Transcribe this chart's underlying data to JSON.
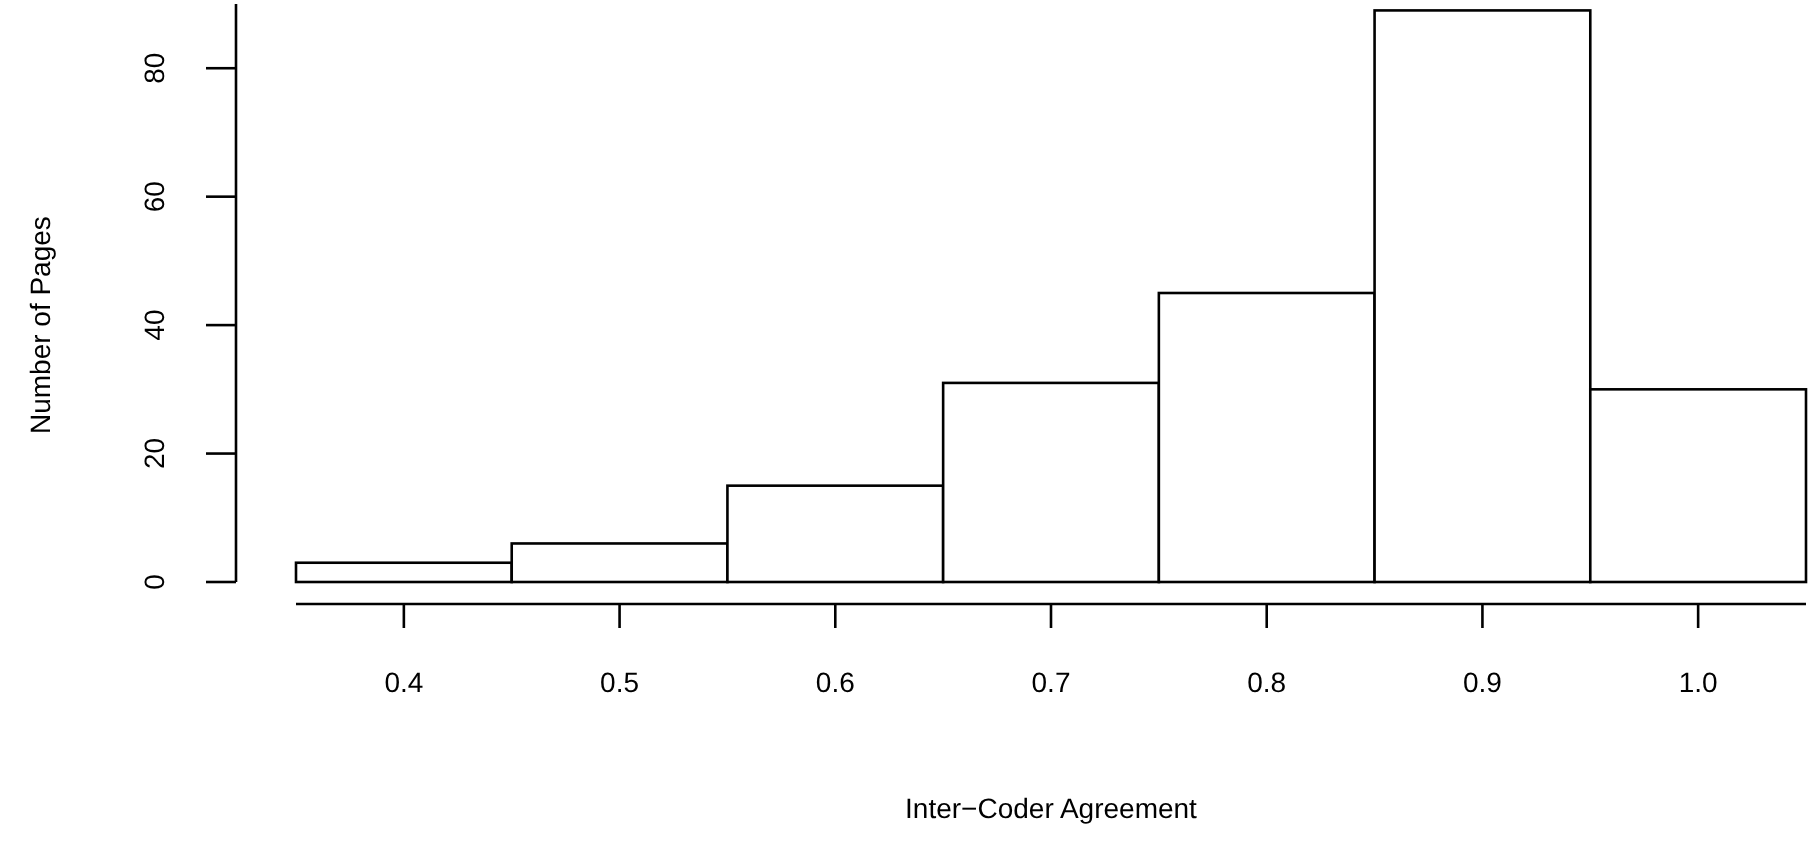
{
  "chart_data": {
    "type": "histogram",
    "xlabel": "Inter−Coder Agreement",
    "ylabel": "Number of Pages",
    "bins": [
      0.35,
      0.45,
      0.55,
      0.65,
      0.75,
      0.85,
      0.95,
      1.05
    ],
    "values": [
      3,
      6,
      15,
      31,
      45,
      89,
      30
    ],
    "color": "#ffffff",
    "xlim": [
      0.35,
      1.05
    ],
    "ylim": [
      0,
      90
    ],
    "xticks": [
      {
        "value": 0.4,
        "label": "0.4"
      },
      {
        "value": 0.5,
        "label": "0.5"
      },
      {
        "value": 0.6,
        "label": "0.6"
      },
      {
        "value": 0.7,
        "label": "0.7"
      },
      {
        "value": 0.8,
        "label": "0.8"
      },
      {
        "value": 0.9,
        "label": "0.9"
      },
      {
        "value": 1.0,
        "label": "1.0"
      }
    ],
    "yticks": [
      0,
      20,
      40,
      60,
      80
    ],
    "grid": false
  }
}
